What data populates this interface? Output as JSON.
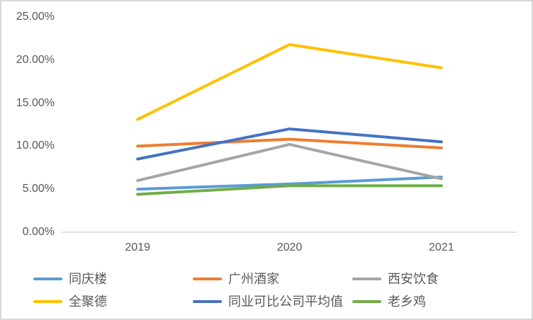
{
  "chart": {
    "background": "#ffffff",
    "border_color": "#d9d9d9",
    "axis_line_color": "#d9d9d9",
    "text_color": "#595959"
  },
  "chart_data": {
    "type": "line",
    "title": "",
    "xlabel": "",
    "ylabel": "",
    "categories": [
      "2019",
      "2020",
      "2021"
    ],
    "series": [
      {
        "name": "同庆楼",
        "color": "#5B9BD5",
        "values": [
          5.0,
          5.6,
          6.4
        ]
      },
      {
        "name": "广州酒家",
        "color": "#ED7D31",
        "values": [
          10.0,
          10.8,
          9.8
        ]
      },
      {
        "name": "西安饮食",
        "color": "#A5A5A5",
        "values": [
          6.0,
          10.2,
          6.2
        ]
      },
      {
        "name": "全聚德",
        "color": "#FFC000",
        "values": [
          13.1,
          21.8,
          19.1
        ]
      },
      {
        "name": "同业可比公司平均值",
        "color": "#4472C4",
        "values": [
          8.5,
          12.0,
          10.5
        ]
      },
      {
        "name": "老乡鸡",
        "color": "#70AD47",
        "values": [
          4.4,
          5.4,
          5.4
        ]
      }
    ],
    "ylim": [
      0,
      25
    ],
    "y_ticks": [
      {
        "value": 0,
        "label": "0.00%"
      },
      {
        "value": 5,
        "label": "5.00%"
      },
      {
        "value": 10,
        "label": "10.00%"
      },
      {
        "value": 15,
        "label": "15.00%"
      },
      {
        "value": 20,
        "label": "20.00%"
      },
      {
        "value": 25,
        "label": "25.00%"
      }
    ],
    "grid": false,
    "legend_position": "bottom"
  }
}
